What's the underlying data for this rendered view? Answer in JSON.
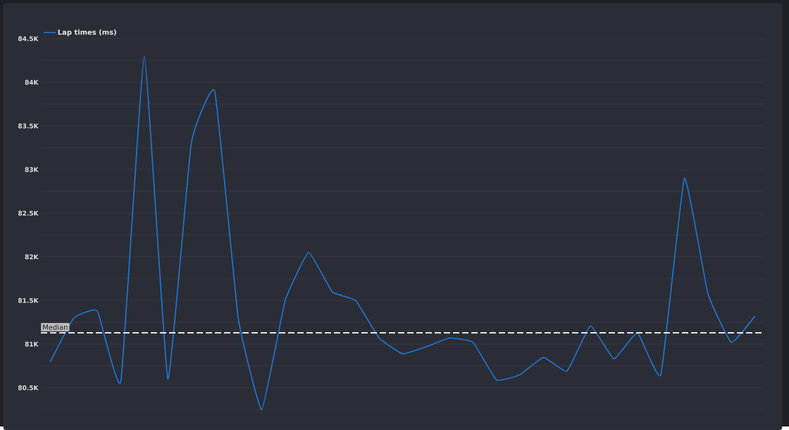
{
  "chart_data": {
    "type": "line",
    "categories": [
      null,
      null,
      null,
      null,
      null,
      null,
      null,
      null,
      null,
      null,
      null,
      null,
      null,
      null,
      null,
      null,
      null,
      null,
      null,
      null,
      null,
      null,
      null,
      null,
      null,
      null,
      null,
      null,
      null,
      null,
      null
    ],
    "series": [
      {
        "name": "Lap times (ms)",
        "color": "#1f78d8",
        "values": [
          80800,
          81300,
          81380,
          80570,
          84300,
          80600,
          83300,
          83900,
          81300,
          80250,
          81500,
          82050,
          81600,
          81500,
          81070,
          80890,
          80970,
          81070,
          81020,
          80590,
          80650,
          80850,
          80690,
          81210,
          80830,
          81130,
          80650,
          82900,
          81580,
          81020,
          81320
        ]
      }
    ],
    "ylim": [
      80250,
      84500
    ],
    "yticks": [
      {
        "value": 80250,
        "label": null
      },
      {
        "value": 80500,
        "label": "80.5K"
      },
      {
        "value": 80750,
        "label": null
      },
      {
        "value": 81000,
        "label": "81K"
      },
      {
        "value": 81250,
        "label": null
      },
      {
        "value": 81500,
        "label": "81.5K"
      },
      {
        "value": 81750,
        "label": null
      },
      {
        "value": 82000,
        "label": "82K"
      },
      {
        "value": 82250,
        "label": null
      },
      {
        "value": 82500,
        "label": "82.5K"
      },
      {
        "value": 82750,
        "label": null
      },
      {
        "value": 83000,
        "label": "83K"
      },
      {
        "value": 83250,
        "label": null
      },
      {
        "value": 83500,
        "label": "83.5K"
      },
      {
        "value": 83750,
        "label": null
      },
      {
        "value": 84000,
        "label": "84K"
      },
      {
        "value": 84250,
        "label": null
      },
      {
        "value": 84500,
        "label": "84.5K"
      }
    ],
    "ref_lines": [
      {
        "axis": "y",
        "value": 81130,
        "label": "Median",
        "color": "#ffffff",
        "line_style": "dashed"
      }
    ],
    "grid": "y",
    "legend": "top left",
    "marker": "none",
    "line_style": "solid"
  }
}
